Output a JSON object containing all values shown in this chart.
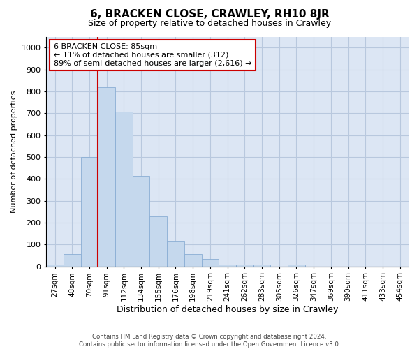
{
  "title": "6, BRACKEN CLOSE, CRAWLEY, RH10 8JR",
  "subtitle": "Size of property relative to detached houses in Crawley",
  "xlabel": "Distribution of detached houses by size in Crawley",
  "ylabel": "Number of detached properties",
  "categories": [
    "27sqm",
    "48sqm",
    "70sqm",
    "91sqm",
    "112sqm",
    "134sqm",
    "155sqm",
    "176sqm",
    "198sqm",
    "219sqm",
    "241sqm",
    "262sqm",
    "283sqm",
    "305sqm",
    "326sqm",
    "347sqm",
    "369sqm",
    "390sqm",
    "411sqm",
    "433sqm",
    "454sqm"
  ],
  "values": [
    8,
    57,
    500,
    820,
    707,
    415,
    230,
    118,
    55,
    35,
    10,
    10,
    10,
    0,
    10,
    0,
    0,
    0,
    0,
    0,
    0
  ],
  "bar_color": "#c5d8ed",
  "bar_edge_color": "#8aaed4",
  "vline_color": "#cc0000",
  "vline_position": 3,
  "annotation_title": "6 BRACKEN CLOSE: 85sqm",
  "annotation_line1": "← 11% of detached houses are smaller (312)",
  "annotation_line2": "89% of semi-detached houses are larger (2,616) →",
  "annotation_box_facecolor": "white",
  "annotation_box_edgecolor": "#cc0000",
  "ylim": [
    0,
    1050
  ],
  "yticks": [
    0,
    100,
    200,
    300,
    400,
    500,
    600,
    700,
    800,
    900,
    1000
  ],
  "grid_color": "#b8c8de",
  "background_color": "#dce6f4",
  "title_fontsize": 11,
  "subtitle_fontsize": 9,
  "xlabel_fontsize": 9,
  "ylabel_fontsize": 8,
  "tick_fontsize": 8,
  "xtick_fontsize": 7.5,
  "footer1": "Contains HM Land Registry data © Crown copyright and database right 2024.",
  "footer2": "Contains public sector information licensed under the Open Government Licence v3.0."
}
